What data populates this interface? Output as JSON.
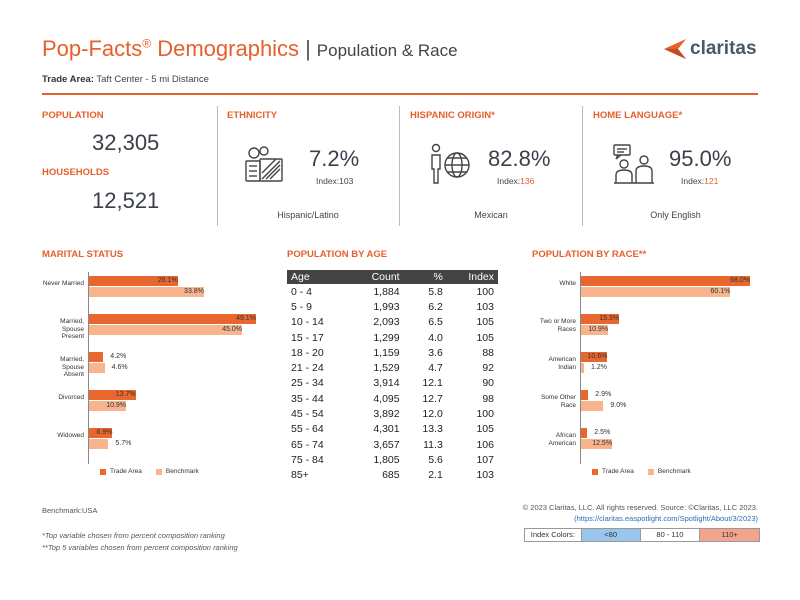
{
  "header": {
    "title": "Pop-Facts",
    "title_sup": "®",
    "title_rest": " Demographics",
    "separator": "|",
    "subtitle": "Population & Race",
    "logo_text": "claritas",
    "trade_area_label": "Trade Area:",
    "trade_area_value": "Taft Center - 5 mi Distance"
  },
  "summary": {
    "population_label": "POPULATION",
    "population_value": "32,305",
    "households_label": "HOUSEHOLDS",
    "households_value": "12,521",
    "ethnicity": {
      "label": "ETHNICITY",
      "value": "7.2%",
      "index_label": "Index:",
      "index_value": "103",
      "caption": "Hispanic/Latino"
    },
    "hispanic_origin": {
      "label": "HISPANIC ORIGIN*",
      "value": "82.8%",
      "index_label": "Index:",
      "index_value": "136",
      "caption": "Mexican"
    },
    "home_language": {
      "label": "HOME LANGUAGE*",
      "value": "95.0%",
      "index_label": "Index:",
      "index_value": "121",
      "caption": "Only English"
    }
  },
  "icons": {
    "ethnicity": "money-calculator-icon",
    "hispanic_origin": "person-globe-icon",
    "home_language": "people-talking-icon",
    "logo": "claritas-arrow-logo-icon"
  },
  "chart_data": [
    {
      "type": "bar",
      "title": "MARITAL STATUS",
      "orientation": "horizontal",
      "categories": [
        "Never Married",
        "Married, Spouse Present",
        "Married, Spouse Absent",
        "Divorced",
        "Widowed"
      ],
      "series": [
        {
          "name": "Trade Area",
          "values": [
            26.1,
            49.1,
            4.2,
            13.7,
            6.9
          ],
          "labels": [
            "26.1%",
            "49.1%",
            "4.2%",
            "13.7%",
            "6.9%"
          ]
        },
        {
          "name": "Benchmark",
          "values": [
            33.8,
            45.0,
            4.6,
            10.9,
            5.7
          ],
          "labels": [
            "33.8%",
            "45.0%",
            "4.6%",
            "10.9%",
            "5.7%"
          ]
        }
      ],
      "index_colors": [
        "#f7b48d",
        "",
        "",
        "#f7b48d",
        "#f7b48d"
      ],
      "xlim": [
        0,
        50
      ],
      "legend": "bottom"
    },
    {
      "type": "bar",
      "title": "POPULATION BY RACE**",
      "orientation": "horizontal",
      "categories": [
        "White",
        "Two or More Races",
        "American Indian",
        "Some Other Race",
        "African American"
      ],
      "series": [
        {
          "name": "Trade Area",
          "values": [
            68.0,
            15.3,
            10.6,
            2.9,
            2.5
          ],
          "labels": [
            "68.0%",
            "15.3%",
            "10.6%",
            "2.9%",
            "2.5%"
          ]
        },
        {
          "name": "Benchmark",
          "values": [
            60.1,
            10.9,
            1.2,
            9.0,
            12.5
          ],
          "labels": [
            "60.1%",
            "10.9%",
            "1.2%",
            "9.0%",
            "12.5%"
          ]
        }
      ],
      "xlim": [
        0,
        70
      ],
      "legend": "bottom"
    }
  ],
  "age_table": {
    "title": "POPULATION BY AGE",
    "headers": [
      "Age",
      "Count",
      "%",
      "Index"
    ],
    "rows": [
      [
        "0 - 4",
        "1,884",
        "5.8",
        "100"
      ],
      [
        "5 - 9",
        "1,993",
        "6.2",
        "103"
      ],
      [
        "10 - 14",
        "2,093",
        "6.5",
        "105"
      ],
      [
        "15 - 17",
        "1,299",
        "4.0",
        "105"
      ],
      [
        "18 - 20",
        "1,159",
        "3.6",
        "88"
      ],
      [
        "21 - 24",
        "1,529",
        "4.7",
        "92"
      ],
      [
        "25 - 34",
        "3,914",
        "12.1",
        "90"
      ],
      [
        "35 - 44",
        "4,095",
        "12.7",
        "98"
      ],
      [
        "45 - 54",
        "3,892",
        "12.0",
        "100"
      ],
      [
        "55 - 64",
        "4,301",
        "13.3",
        "105"
      ],
      [
        "65 - 74",
        "3,657",
        "11.3",
        "106"
      ],
      [
        "75 - 84",
        "1,805",
        "5.6",
        "107"
      ],
      [
        "85+",
        "685",
        "2.1",
        "103"
      ]
    ]
  },
  "footer": {
    "benchmark": "Benchmark:USA",
    "note1": "*Top variable chosen from percent composition ranking",
    "note2": "**Top 5 variables chosen from percent composition ranking",
    "copyright": "© 2023 Claritas, LLC. All rights reserved. Source: ©Claritas, LLC 2023.",
    "link": "(https://claritas.easpotlight.com/Spotlight/About/3/2023)",
    "index_colors_label": "Index Colors:",
    "index_low": "<80",
    "index_mid": "80 - 110",
    "index_high": "110+",
    "color_low": "#9ac6ee",
    "color_mid": "#ffffff",
    "color_high": "#f3a48c"
  }
}
